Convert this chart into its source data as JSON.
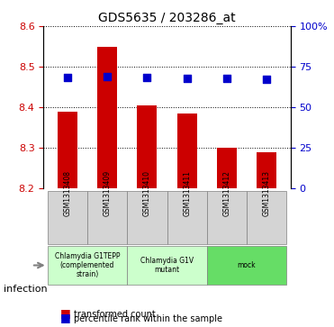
{
  "title": "GDS5635 / 203286_at",
  "samples": [
    "GSM1313408",
    "GSM1313409",
    "GSM1313410",
    "GSM1313411",
    "GSM1313412",
    "GSM1313413"
  ],
  "transformed_counts": [
    8.39,
    8.55,
    8.405,
    8.385,
    8.3,
    8.29
  ],
  "percentile_ranks": [
    0.685,
    0.688,
    0.683,
    0.678,
    0.677,
    0.675
  ],
  "ylim_left": [
    8.2,
    8.6
  ],
  "ylim_right": [
    0,
    100
  ],
  "yticks_left": [
    8.2,
    8.3,
    8.4,
    8.5,
    8.6
  ],
  "yticks_right": [
    0,
    25,
    50,
    75,
    100
  ],
  "bar_color": "#cc0000",
  "dot_color": "#0000cc",
  "bar_bottom": 8.2,
  "groups": [
    {
      "label": "Chlamydia G1TEPP\n(complemented\nstrain)",
      "start": 0,
      "end": 2,
      "color": "#ccffcc"
    },
    {
      "label": "Chlamydia G1V\nmutant",
      "start": 2,
      "end": 4,
      "color": "#ccffcc"
    },
    {
      "label": "mock",
      "start": 4,
      "end": 6,
      "color": "#66dd66"
    }
  ],
  "legend_items": [
    {
      "color": "#cc0000",
      "label": "transformed count"
    },
    {
      "color": "#0000cc",
      "label": "percentile rank within the sample"
    }
  ],
  "infection_label": "infection",
  "xlabel_color": "black",
  "left_axis_color": "#cc0000",
  "right_axis_color": "#0000cc",
  "grid_color": "black",
  "grid_style": "dotted"
}
